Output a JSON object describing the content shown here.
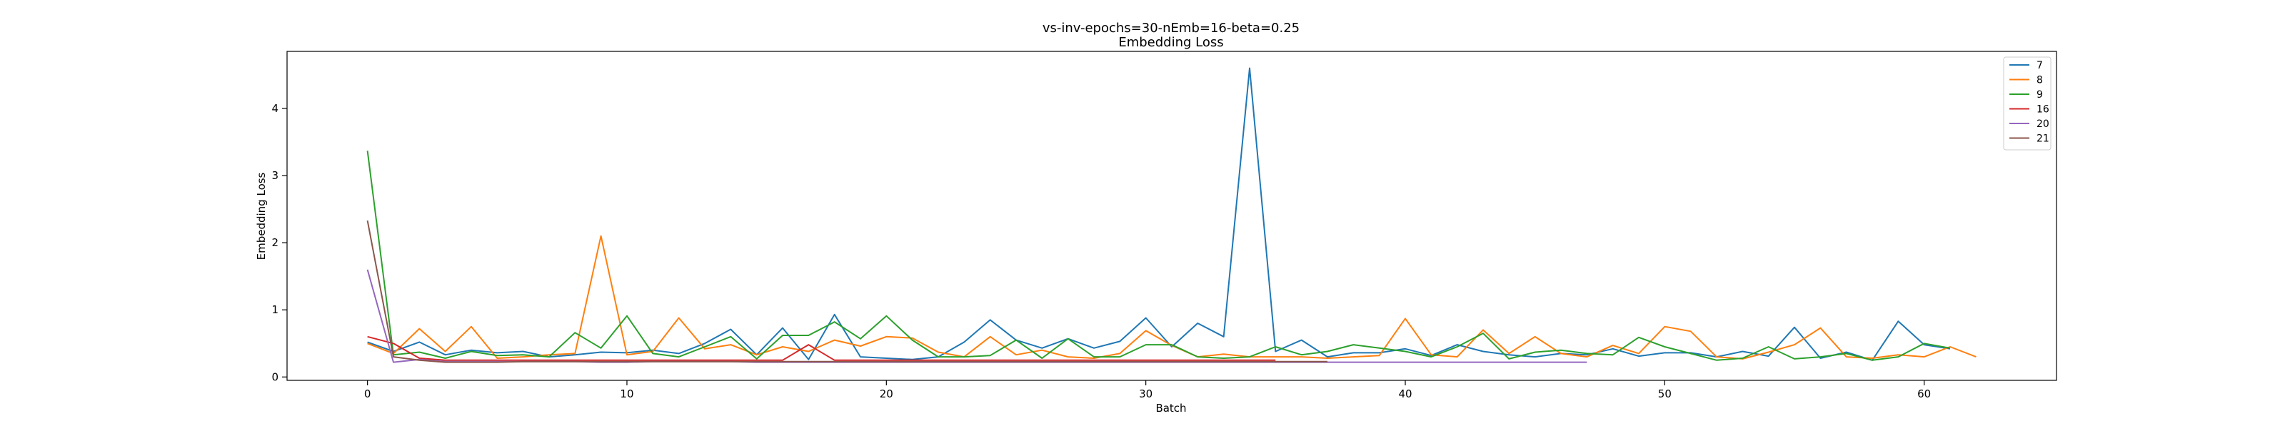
{
  "chart_data": {
    "type": "line",
    "title": "vs-inv-epochs=30-nEmb=16-beta=0.25",
    "subtitle": "Embedding Loss",
    "xlabel": "Batch",
    "ylabel": "Embedding Loss",
    "xlim": [
      -3.1,
      65.1
    ],
    "ylim": [
      -0.05,
      4.85
    ],
    "xticks": [
      0,
      10,
      20,
      30,
      40,
      50,
      60
    ],
    "yticks": [
      0,
      1,
      2,
      3,
      4
    ],
    "grid": false,
    "legend_position": "top-right",
    "series": [
      {
        "name": "7",
        "color": "#1f77b4",
        "values": [
          0.52,
          0.38,
          0.52,
          0.33,
          0.4,
          0.36,
          0.38,
          0.3,
          0.33,
          0.37,
          0.36,
          0.4,
          0.35,
          0.5,
          0.71,
          0.33,
          0.73,
          0.26,
          0.93,
          0.3,
          0.28,
          0.26,
          0.3,
          0.52,
          0.85,
          0.55,
          0.43,
          0.57,
          0.43,
          0.53,
          0.88,
          0.45,
          0.8,
          0.6,
          4.6,
          0.38,
          0.55,
          0.3,
          0.36,
          0.36,
          0.42,
          0.32,
          0.48,
          0.38,
          0.33,
          0.3,
          0.35,
          0.33,
          0.42,
          0.31,
          0.36,
          0.36,
          0.3,
          0.38,
          0.31,
          0.74,
          0.28,
          0.37,
          0.25,
          0.83,
          0.48,
          0.42
        ]
      },
      {
        "name": "8",
        "color": "#ff7f0e",
        "values": [
          0.5,
          0.35,
          0.72,
          0.38,
          0.75,
          0.28,
          0.3,
          0.33,
          0.35,
          2.1,
          0.33,
          0.38,
          0.88,
          0.42,
          0.48,
          0.33,
          0.45,
          0.38,
          0.55,
          0.46,
          0.6,
          0.58,
          0.37,
          0.3,
          0.6,
          0.33,
          0.4,
          0.3,
          0.28,
          0.35,
          0.69,
          0.47,
          0.3,
          0.34,
          0.3,
          0.3,
          0.3,
          0.28,
          0.3,
          0.32,
          0.87,
          0.33,
          0.3,
          0.7,
          0.35,
          0.6,
          0.35,
          0.3,
          0.47,
          0.35,
          0.75,
          0.68,
          0.3,
          0.27,
          0.37,
          0.48,
          0.73,
          0.3,
          0.28,
          0.33,
          0.3,
          0.45,
          0.3
        ]
      },
      {
        "name": "9",
        "color": "#2ca02c",
        "values": [
          3.37,
          0.33,
          0.37,
          0.28,
          0.38,
          0.32,
          0.33,
          0.3,
          0.66,
          0.43,
          0.91,
          0.35,
          0.3,
          0.45,
          0.6,
          0.27,
          0.62,
          0.62,
          0.82,
          0.57,
          0.91,
          0.55,
          0.3,
          0.3,
          0.32,
          0.55,
          0.28,
          0.57,
          0.3,
          0.3,
          0.48,
          0.48,
          0.3,
          0.28,
          0.3,
          0.45,
          0.33,
          0.38,
          0.48,
          0.43,
          0.38,
          0.3,
          0.45,
          0.65,
          0.27,
          0.37,
          0.4,
          0.35,
          0.33,
          0.59,
          0.45,
          0.35,
          0.25,
          0.28,
          0.45,
          0.27,
          0.3,
          0.35,
          0.25,
          0.3,
          0.5,
          0.43
        ]
      },
      {
        "name": "16",
        "color": "#d62728",
        "values": [
          0.6,
          0.5,
          0.28,
          0.25,
          0.25,
          0.25,
          0.25,
          0.25,
          0.25,
          0.25,
          0.25,
          0.25,
          0.25,
          0.25,
          0.25,
          0.25,
          0.25,
          0.48,
          0.25,
          0.25,
          0.25,
          0.25,
          0.25,
          0.25,
          0.25,
          0.25,
          0.25,
          0.25,
          0.25,
          0.25,
          0.25,
          0.25,
          0.25,
          0.25,
          0.25,
          0.25
        ]
      },
      {
        "name": "20",
        "color": "#9467bd",
        "values": [
          1.6,
          0.22,
          0.26,
          0.23,
          0.23,
          0.23,
          0.23,
          0.23,
          0.23,
          0.22,
          0.22,
          0.23,
          0.23,
          0.23,
          0.23,
          0.22,
          0.22,
          0.22,
          0.22,
          0.22,
          0.22,
          0.22,
          0.22,
          0.22,
          0.22,
          0.22,
          0.22,
          0.22,
          0.22,
          0.22,
          0.22,
          0.22,
          0.22,
          0.22,
          0.22,
          0.22,
          0.22,
          0.22,
          0.22,
          0.22,
          0.22,
          0.22,
          0.22,
          0.22,
          0.22,
          0.22,
          0.22,
          0.22
        ]
      },
      {
        "name": "21",
        "color": "#8c564b",
        "values": [
          2.33,
          0.3,
          0.25,
          0.22,
          0.22,
          0.22,
          0.23,
          0.23,
          0.23,
          0.23,
          0.23,
          0.23,
          0.23,
          0.23,
          0.23,
          0.23,
          0.23,
          0.23,
          0.23,
          0.23,
          0.23,
          0.23,
          0.23,
          0.23,
          0.23,
          0.23,
          0.23,
          0.23,
          0.23,
          0.23,
          0.23,
          0.23,
          0.23,
          0.23,
          0.23,
          0.23,
          0.23,
          0.23
        ]
      }
    ]
  }
}
